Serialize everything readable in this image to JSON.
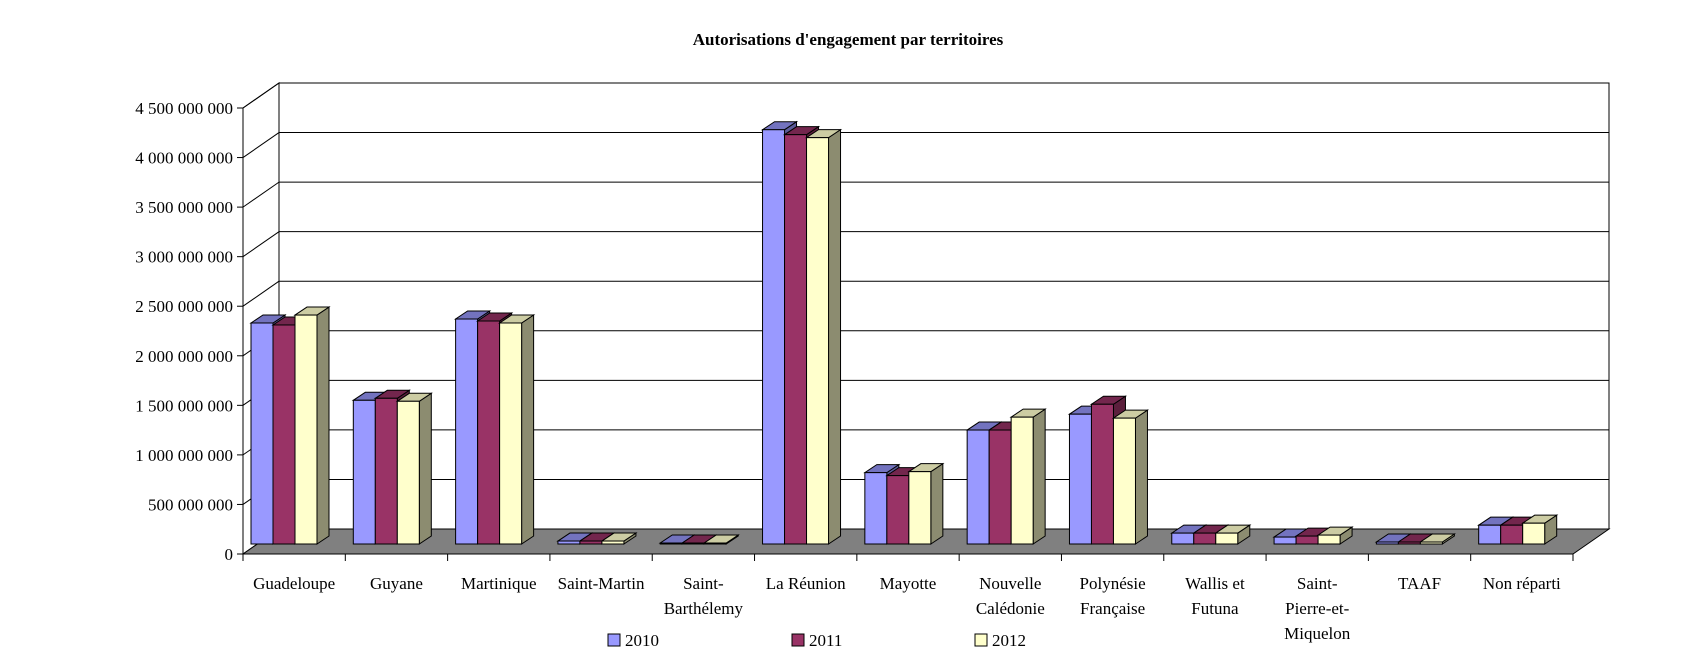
{
  "chart_data": {
    "type": "bar",
    "title": "Autorisations d'engagement par territoires",
    "xlabel": "",
    "ylabel": "",
    "ylim": [
      0,
      4500000000
    ],
    "yticks": [
      0,
      500000000,
      1000000000,
      1500000000,
      2000000000,
      2500000000,
      3000000000,
      3500000000,
      4000000000,
      4500000000
    ],
    "ytick_labels": [
      "0",
      "500 000 000",
      "1 000 000 000",
      "1 500 000 000",
      "2 000 000 000",
      "2 500 000 000",
      "3 000 000 000",
      "3 500 000 000",
      "4 000 000 000",
      "4 500 000 000"
    ],
    "grid": true,
    "legend_position": "bottom",
    "categories": [
      "Guadeloupe",
      "Guyane",
      "Martinique",
      "Saint-Martin",
      "Saint-Barthélemy",
      "La Réunion",
      "Mayotte",
      "Nouvelle Calédonie",
      "Polynésie Française",
      "Wallis et Futuna",
      "Saint-Pierre-et-Miquelon",
      "TAAF",
      "Non réparti"
    ],
    "category_lines": [
      [
        "Guadeloupe"
      ],
      [
        "Guyane"
      ],
      [
        "Martinique"
      ],
      [
        "Saint-Martin"
      ],
      [
        "Saint-",
        "Barthélemy"
      ],
      [
        "La Réunion"
      ],
      [
        "Mayotte"
      ],
      [
        "Nouvelle",
        "Calédonie"
      ],
      [
        "Polynésie",
        "Française"
      ],
      [
        "Wallis et",
        "Futuna"
      ],
      [
        "Saint-",
        "Pierre-et-",
        "Miquelon"
      ],
      [
        "TAAF"
      ],
      [
        "Non réparti"
      ]
    ],
    "series": [
      {
        "name": "2010",
        "color": "#9999ff",
        "values": [
          2230000000,
          1450000000,
          2270000000,
          30000000,
          10000000,
          4180000000,
          720000000,
          1150000000,
          1310000000,
          110000000,
          70000000,
          20000000,
          190000000
        ]
      },
      {
        "name": "2011",
        "color": "#993366",
        "values": [
          2210000000,
          1470000000,
          2250000000,
          30000000,
          10000000,
          4130000000,
          690000000,
          1150000000,
          1410000000,
          110000000,
          80000000,
          20000000,
          190000000
        ]
      },
      {
        "name": "2012",
        "color": "#ffffcc",
        "values": [
          2310000000,
          1440000000,
          2230000000,
          30000000,
          10000000,
          4100000000,
          730000000,
          1280000000,
          1270000000,
          110000000,
          90000000,
          20000000,
          210000000
        ]
      }
    ]
  }
}
